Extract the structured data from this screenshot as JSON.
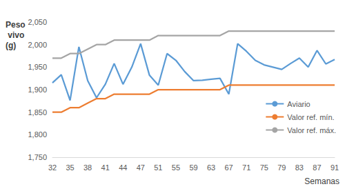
{
  "chart_data": {
    "type": "line",
    "x_label": "Semanas",
    "y_label": "Peso vivo (g)",
    "categories": [
      "32",
      null,
      "35",
      null,
      "38",
      null,
      "41",
      null,
      "44",
      null,
      "47",
      null,
      "51",
      null,
      "55",
      null,
      "59",
      null,
      "63",
      null,
      "67",
      null,
      "71",
      null,
      "75",
      null,
      "79",
      null,
      "83",
      null,
      "87",
      null,
      "91"
    ],
    "series": [
      {
        "name": "Aviario",
        "color": "#5b9bd5",
        "values": [
          1915,
          1933,
          1876,
          1995,
          1920,
          1882,
          1912,
          1958,
          1912,
          1950,
          2002,
          1932,
          1910,
          1980,
          1965,
          1940,
          1920,
          1921,
          1923,
          1925,
          1890,
          2002,
          1985,
          1965,
          1955,
          1950,
          1945,
          1958,
          1970,
          1950,
          1987,
          1957,
          1967
        ]
      },
      {
        "name": "Valor ref. mín.",
        "color": "#ed7d31",
        "values": [
          1850,
          1850,
          1860,
          1860,
          1870,
          1880,
          1880,
          1890,
          1890,
          1890,
          1890,
          1890,
          1900,
          1900,
          1900,
          1900,
          1900,
          1900,
          1900,
          1900,
          1910,
          1910,
          1910,
          1910,
          1910,
          1910,
          1910,
          1910,
          1910,
          1910,
          1910,
          1910,
          1910
        ]
      },
      {
        "name": "Valor ref. máx.",
        "color": "#a5a5a5",
        "values": [
          1970,
          1970,
          1980,
          1980,
          1990,
          2000,
          2000,
          2010,
          2010,
          2010,
          2010,
          2010,
          2020,
          2020,
          2020,
          2020,
          2020,
          2020,
          2020,
          2020,
          2030,
          2030,
          2030,
          2030,
          2030,
          2030,
          2030,
          2030,
          2030,
          2030,
          2030,
          2030,
          2030
        ]
      }
    ],
    "ylim": [
      1750,
      2050
    ],
    "yticks": [
      1750,
      1800,
      1850,
      1900,
      1950,
      2000,
      2050
    ],
    "grid": false,
    "legend": "right"
  }
}
